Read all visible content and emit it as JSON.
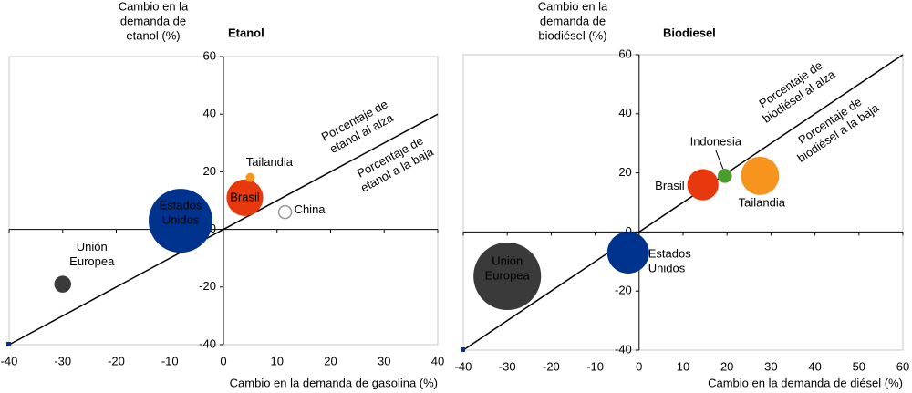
{
  "chart_data": [
    {
      "type": "scatter",
      "title": "Etanol",
      "y_label": [
        "Cambio en la",
        "demanda de",
        "etanol (%)"
      ],
      "x_label": "Cambio en la demanda de gasolina (%)",
      "xlim": [
        -40,
        40
      ],
      "ylim": [
        -40,
        60
      ],
      "xticks": [
        -40,
        -30,
        -20,
        -10,
        0,
        10,
        20,
        30,
        40
      ],
      "yticks": [
        -40,
        -20,
        0,
        20,
        40,
        60
      ],
      "labels": [
        [
          "Unión",
          "Europea"
        ],
        [
          "Estados",
          "Unidos"
        ],
        [
          "Brasil"
        ],
        [
          "Tailandia"
        ],
        [
          "China"
        ]
      ],
      "x": [
        -30,
        -8,
        4,
        5,
        11.5
      ],
      "values": [
        -19,
        3,
        11,
        18,
        6
      ],
      "sizes": [
        7,
        100,
        33,
        2,
        4
      ],
      "colors": [
        "#3a3a3a",
        "#00338d",
        "#e8380d",
        "#f7941d",
        "#999999"
      ],
      "hollow": [
        false,
        false,
        false,
        false,
        true
      ],
      "diagonal": true,
      "annotations": [
        [
          "Porcentaje de",
          "etanol al alza"
        ],
        [
          "Porcentaje de",
          "etanol a la baja"
        ]
      ]
    },
    {
      "type": "scatter",
      "title": "Biodiesel",
      "y_label": [
        "Cambio en la",
        "demanda de",
        "biodiésel (%)"
      ],
      "x_label": "Cambio en la demanda de diésel (%)",
      "xlim": [
        -40,
        60
      ],
      "ylim": [
        -40,
        60
      ],
      "xticks": [
        -40,
        -30,
        -20,
        -10,
        0,
        10,
        20,
        30,
        40,
        50,
        60
      ],
      "yticks": [
        -40,
        -20,
        0,
        20,
        40,
        60
      ],
      "labels": [
        [
          "Unión",
          "Europea"
        ],
        [
          "Estados",
          "Unidos"
        ],
        [
          "Brasil"
        ],
        [
          "Indonesia"
        ],
        [
          "Tailandia"
        ]
      ],
      "x": [
        -30,
        -2.5,
        14.5,
        19.5,
        27.5
      ],
      "values": [
        -15,
        -7,
        16,
        19,
        19
      ],
      "sizes": [
        112,
        43,
        24,
        5,
        36
      ],
      "colors": [
        "#3a3a3a",
        "#00338d",
        "#e8380d",
        "#4a9c2d",
        "#f7941d"
      ],
      "hollow": [
        false,
        false,
        false,
        false,
        false
      ],
      "diagonal": true,
      "annotations": [
        [
          "Porcentaje de",
          "biodiésel al alza"
        ],
        [
          "Porcentaje de",
          "biodiésel a la baja"
        ]
      ]
    }
  ]
}
